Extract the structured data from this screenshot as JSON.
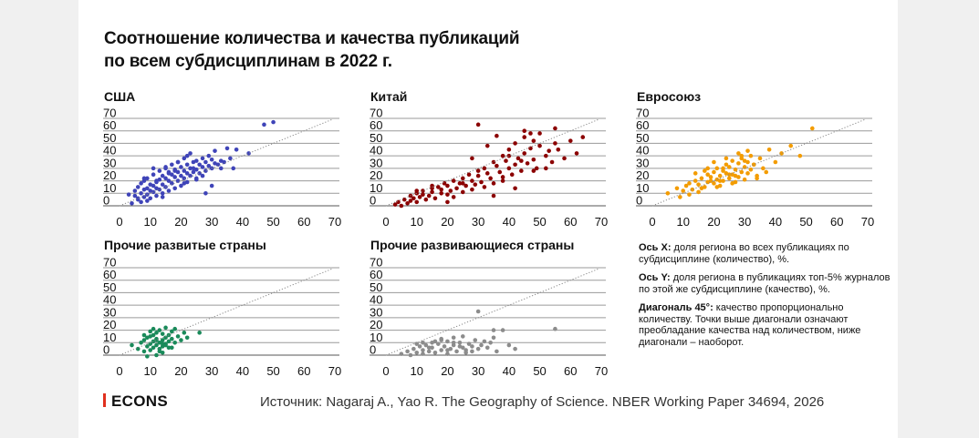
{
  "title_line1": "Соотношение количества и качества публикаций",
  "title_line2": "по всем субдисциплинам в 2022 г.",
  "logo": "ECONS",
  "source": "Источник: Nagaraj A., Yao R. The Geography of Science. NBER Working Paper 34694, 2026",
  "notes": {
    "x_label": "Ось X:",
    "x_text": " доля региона во всех публикациях по субдисциплине (количество), %.",
    "y_label": "Ось Y:",
    "y_text": " доля региона в публикациях топ-5% журналов по этой же субдисциплине (качество), %.",
    "d_label": "Диагональ 45°:",
    "d_text": " качество пропорционально количеству. Точки выше диагонали означают преобладание качества над количеством, ниже диагонали – наоборот."
  },
  "chart_data": [
    {
      "type": "scatter",
      "title": "США",
      "color": "#3f44b8",
      "xlim": [
        0,
        70
      ],
      "ylim": [
        0,
        70
      ],
      "xticks": [
        "0",
        "10",
        "20",
        "30",
        "40",
        "50",
        "60",
        "70"
      ],
      "yticks": [
        "0",
        "10",
        "20",
        "30",
        "40",
        "50",
        "60",
        "70"
      ],
      "diagonal": true,
      "x": [
        4,
        5,
        5,
        6,
        6,
        7,
        7,
        7,
        8,
        8,
        8,
        9,
        9,
        9,
        10,
        10,
        10,
        11,
        11,
        11,
        12,
        12,
        12,
        13,
        13,
        13,
        14,
        14,
        14,
        15,
        15,
        15,
        16,
        16,
        16,
        17,
        17,
        17,
        18,
        18,
        18,
        19,
        19,
        19,
        20,
        20,
        20,
        21,
        21,
        21,
        22,
        22,
        22,
        23,
        23,
        23,
        24,
        24,
        25,
        25,
        25,
        26,
        26,
        27,
        27,
        28,
        28,
        29,
        29,
        30,
        30,
        31,
        31,
        32,
        33,
        34,
        35,
        36,
        37,
        38,
        42,
        47,
        50,
        3,
        6,
        9,
        12,
        15,
        18,
        21,
        24,
        27,
        30,
        33,
        14,
        16,
        19,
        22,
        25,
        28,
        11,
        8
      ],
      "y": [
        2,
        8,
        12,
        5,
        15,
        10,
        3,
        18,
        7,
        13,
        20,
        9,
        14,
        22,
        6,
        12,
        17,
        11,
        16,
        25,
        8,
        14,
        19,
        13,
        21,
        28,
        10,
        17,
        24,
        15,
        22,
        30,
        12,
        20,
        27,
        18,
        25,
        33,
        14,
        23,
        29,
        20,
        27,
        35,
        16,
        24,
        31,
        22,
        28,
        38,
        19,
        26,
        33,
        24,
        30,
        42,
        27,
        35,
        22,
        29,
        36,
        26,
        33,
        31,
        38,
        28,
        35,
        32,
        40,
        30,
        37,
        34,
        44,
        33,
        36,
        35,
        46,
        38,
        30,
        45,
        42,
        65,
        67,
        9,
        6,
        4,
        20,
        31,
        28,
        18,
        30,
        24,
        16,
        30,
        7,
        26,
        35,
        40,
        21,
        10,
        30,
        22
      ]
    },
    {
      "type": "scatter",
      "title": "Китай",
      "color": "#8b0000",
      "xlim": [
        0,
        70
      ],
      "ylim": [
        0,
        70
      ],
      "xticks": [
        "0",
        "10",
        "20",
        "30",
        "40",
        "50",
        "60",
        "70"
      ],
      "yticks": [
        "0",
        "10",
        "20",
        "30",
        "40",
        "50",
        "60",
        "70"
      ],
      "diagonal": true,
      "x": [
        3,
        4,
        5,
        6,
        7,
        8,
        8,
        9,
        10,
        10,
        11,
        12,
        12,
        13,
        14,
        15,
        15,
        16,
        17,
        18,
        18,
        19,
        20,
        20,
        21,
        22,
        22,
        23,
        24,
        25,
        25,
        26,
        27,
        28,
        28,
        29,
        30,
        30,
        31,
        32,
        32,
        33,
        34,
        35,
        35,
        36,
        37,
        38,
        38,
        39,
        40,
        40,
        41,
        42,
        42,
        43,
        44,
        45,
        45,
        46,
        47,
        48,
        48,
        49,
        50,
        50,
        52,
        53,
        54,
        55,
        56,
        58,
        60,
        62,
        64,
        30,
        35,
        38,
        42,
        45,
        48,
        20,
        25,
        15,
        10,
        28,
        33,
        44,
        47,
        52,
        55,
        40,
        36
      ],
      "y": [
        1,
        3,
        0,
        5,
        2,
        8,
        4,
        6,
        10,
        3,
        7,
        9,
        12,
        5,
        8,
        14,
        11,
        6,
        15,
        10,
        13,
        18,
        9,
        16,
        12,
        20,
        7,
        14,
        18,
        11,
        22,
        16,
        25,
        13,
        20,
        17,
        28,
        24,
        19,
        30,
        15,
        26,
        22,
        35,
        18,
        32,
        27,
        40,
        23,
        36,
        30,
        45,
        25,
        33,
        50,
        38,
        28,
        42,
        55,
        34,
        46,
        37,
        52,
        30,
        48,
        58,
        40,
        44,
        35,
        50,
        45,
        38,
        52,
        42,
        55,
        65,
        8,
        20,
        14,
        60,
        28,
        3,
        18,
        16,
        12,
        38,
        48,
        36,
        58,
        30,
        62,
        40,
        56
      ]
    },
    {
      "type": "scatter",
      "title": "Евросоюз",
      "color": "#f39c00",
      "xlim": [
        0,
        70
      ],
      "ylim": [
        0,
        70
      ],
      "xticks": [
        "0",
        "10",
        "20",
        "30",
        "40",
        "50",
        "60",
        "70"
      ],
      "yticks": [
        "0",
        "10",
        "20",
        "30",
        "40",
        "50",
        "60",
        "70"
      ],
      "diagonal": true,
      "x": [
        5,
        8,
        9,
        10,
        11,
        12,
        12,
        13,
        14,
        15,
        15,
        16,
        17,
        18,
        18,
        19,
        20,
        20,
        21,
        21,
        22,
        22,
        23,
        23,
        24,
        24,
        25,
        25,
        26,
        26,
        27,
        27,
        28,
        28,
        29,
        29,
        30,
        30,
        31,
        31,
        32,
        32,
        33,
        34,
        35,
        36,
        37,
        38,
        40,
        42,
        45,
        48,
        52,
        18,
        20,
        22,
        24,
        26,
        28,
        30,
        16,
        19,
        23,
        27,
        31,
        34,
        21,
        25,
        29,
        33,
        14,
        17
      ],
      "y": [
        10,
        14,
        7,
        12,
        16,
        9,
        18,
        13,
        20,
        11,
        17,
        22,
        15,
        25,
        19,
        23,
        18,
        27,
        21,
        30,
        16,
        24,
        28,
        20,
        33,
        26,
        22,
        31,
        25,
        36,
        19,
        29,
        34,
        23,
        27,
        38,
        31,
        21,
        35,
        26,
        29,
        40,
        33,
        24,
        38,
        30,
        27,
        45,
        35,
        42,
        48,
        40,
        62,
        30,
        35,
        20,
        38,
        18,
        42,
        36,
        14,
        20,
        30,
        24,
        44,
        22,
        15,
        25,
        40,
        33,
        26,
        28
      ]
    },
    {
      "type": "scatter",
      "title": "Прочие развитые страны",
      "color": "#1a8a5a",
      "xlim": [
        0,
        70
      ],
      "ylim": [
        0,
        70
      ],
      "xticks": [
        "0",
        "10",
        "20",
        "30",
        "40",
        "50",
        "60",
        "70"
      ],
      "yticks": [
        "0",
        "10",
        "20",
        "30",
        "40",
        "50",
        "60",
        "70"
      ],
      "diagonal": true,
      "x": [
        4,
        6,
        7,
        8,
        8,
        9,
        9,
        10,
        10,
        10,
        11,
        11,
        11,
        12,
        12,
        12,
        13,
        13,
        13,
        14,
        14,
        14,
        15,
        15,
        15,
        16,
        16,
        17,
        17,
        18,
        18,
        19,
        20,
        21,
        22,
        26,
        9,
        12,
        14,
        16,
        11,
        13,
        10,
        15,
        8,
        17,
        12,
        14
      ],
      "y": [
        8,
        5,
        10,
        3,
        12,
        7,
        14,
        4,
        9,
        15,
        6,
        11,
        16,
        8,
        13,
        18,
        5,
        10,
        20,
        7,
        12,
        17,
        9,
        14,
        22,
        11,
        16,
        13,
        19,
        10,
        21,
        15,
        12,
        18,
        14,
        18,
        -1,
        0,
        2,
        6,
        21,
        3,
        19,
        8,
        16,
        6,
        12,
        9
      ]
    },
    {
      "type": "scatter",
      "title": "Прочие развивающиеся страны",
      "color": "#8c8c8c",
      "xlim": [
        0,
        70
      ],
      "ylim": [
        0,
        70
      ],
      "xticks": [
        "0",
        "10",
        "20",
        "30",
        "40",
        "50",
        "60",
        "70"
      ],
      "yticks": [
        "0",
        "10",
        "20",
        "30",
        "40",
        "50",
        "60",
        "70"
      ],
      "diagonal": true,
      "x": [
        5,
        7,
        8,
        9,
        10,
        11,
        12,
        12,
        13,
        14,
        15,
        15,
        16,
        17,
        18,
        18,
        19,
        20,
        20,
        21,
        22,
        22,
        23,
        24,
        25,
        25,
        26,
        27,
        28,
        29,
        30,
        31,
        32,
        33,
        34,
        35,
        36,
        40,
        42,
        55,
        10,
        14,
        18,
        22,
        26,
        30,
        16,
        20,
        24,
        28,
        12,
        35,
        38
      ],
      "y": [
        1,
        3,
        0,
        5,
        2,
        7,
        1,
        4,
        8,
        3,
        6,
        10,
        2,
        9,
        4,
        12,
        7,
        1,
        11,
        5,
        8,
        14,
        3,
        10,
        6,
        15,
        4,
        9,
        7,
        12,
        5,
        8,
        11,
        6,
        10,
        20,
        3,
        8,
        5,
        21,
        9,
        6,
        13,
        10,
        2,
        35,
        11,
        4,
        7,
        3,
        10,
        14,
        20
      ]
    }
  ]
}
